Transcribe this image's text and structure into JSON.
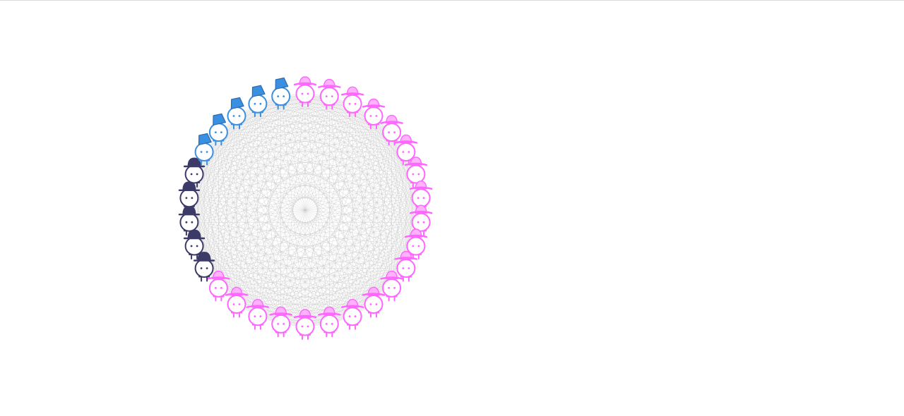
{
  "network": {
    "groups": [
      {
        "name": "pink-sun-hat",
        "count": 20,
        "color": "#ff66ff",
        "hat_fill": "#ffb3ff",
        "hat": "sun-hat"
      },
      {
        "name": "navy-bowler",
        "count": 5,
        "color": "#3c3a66",
        "hat_fill": "#3c3a66",
        "hat": "bowler"
      },
      {
        "name": "blue-fez",
        "count": 5,
        "color": "#3a8fe0",
        "hat_fill": "#3a8fe0",
        "hat": "fez"
      }
    ],
    "edge_color": "#c8c8c8",
    "connect_all": true
  }
}
